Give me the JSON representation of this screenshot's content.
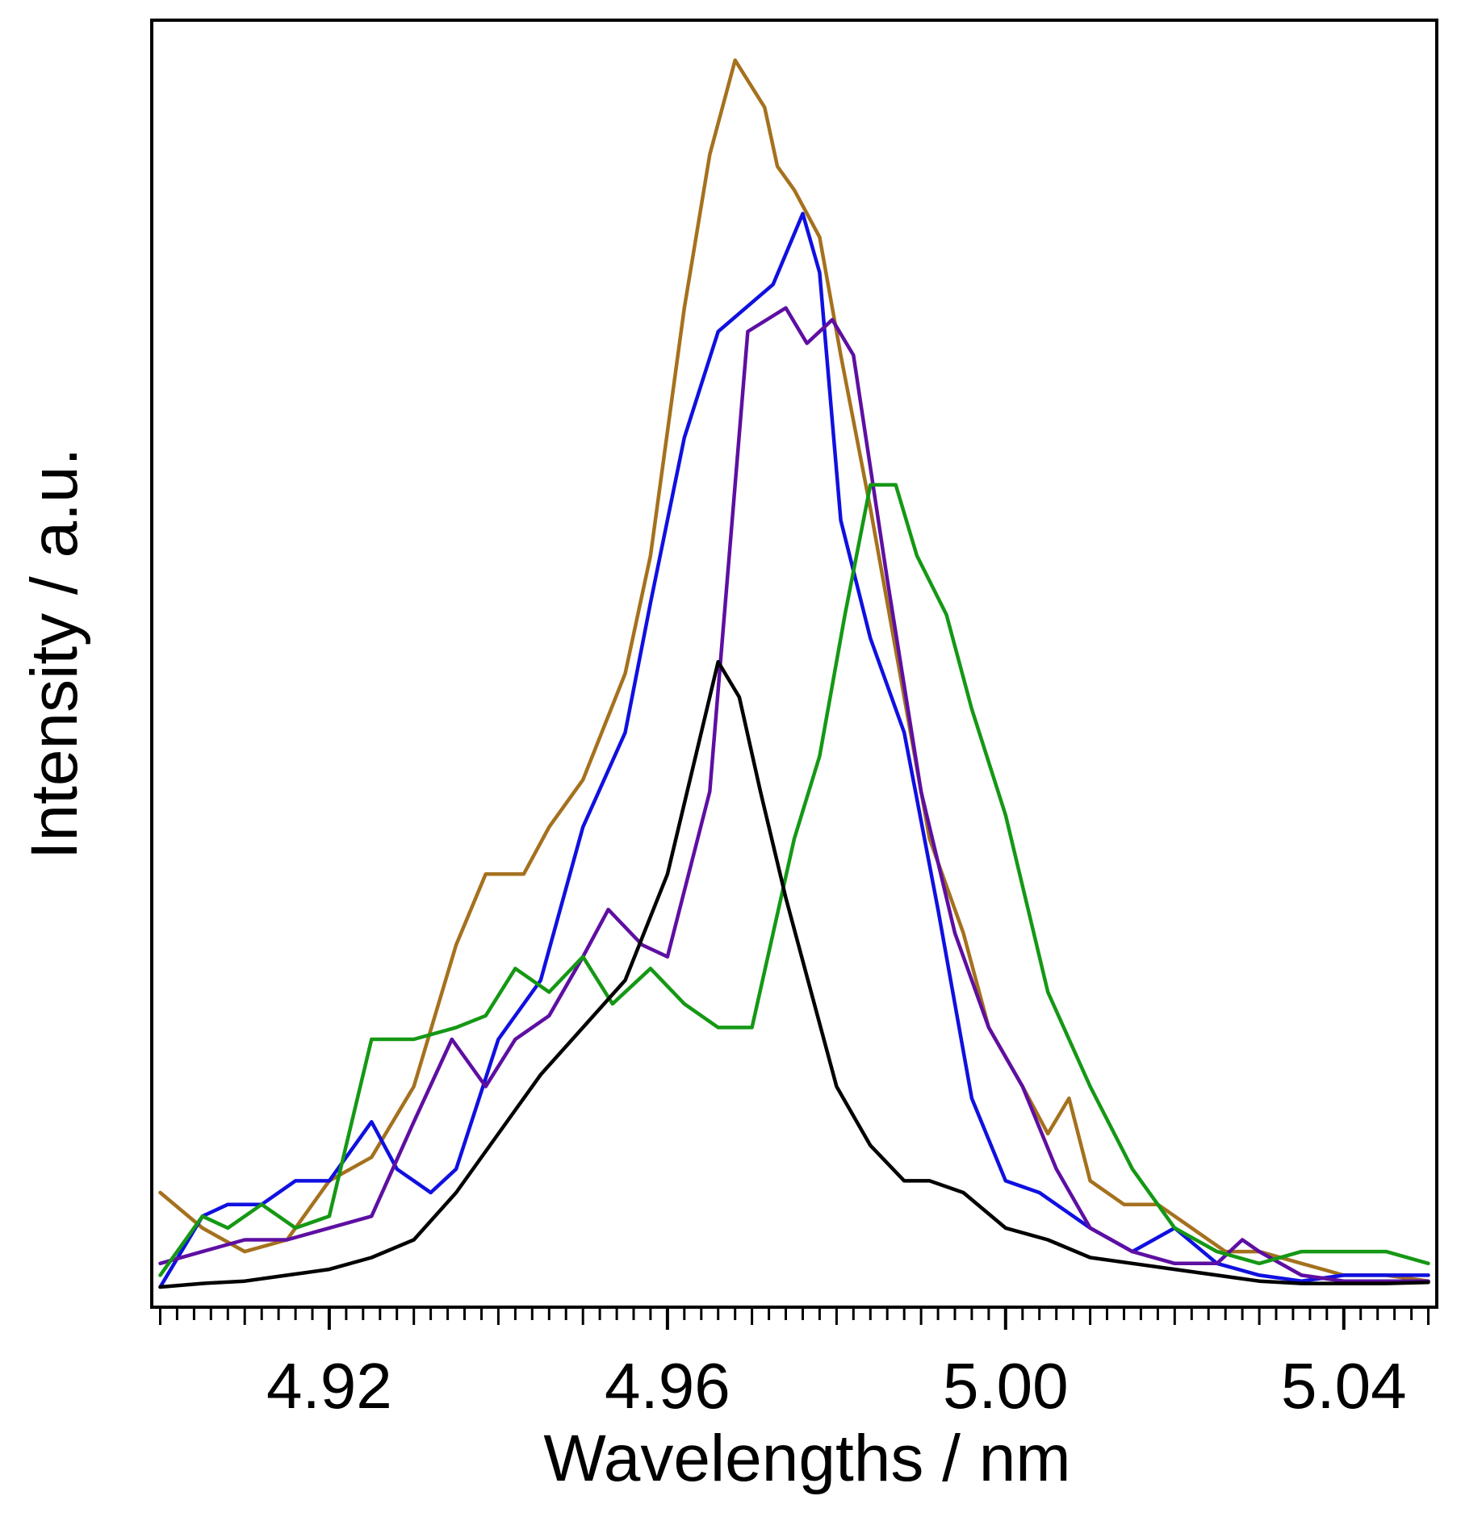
{
  "chart_data": {
    "type": "line",
    "title": "",
    "xlabel": "Wavelengths / nm",
    "ylabel": "Intensity / a.u.",
    "xlim": [
      4.899,
      5.051
    ],
    "ylim": [
      0.0,
      1.05
    ],
    "x_ticks": [
      4.92,
      4.96,
      5.0,
      5.04
    ],
    "x_tick_labels": [
      "4.92",
      "4.96",
      "5.00",
      "5.04"
    ],
    "x_minor_step": 0.002,
    "x_medium_step": 0.01,
    "y_ticks_shown": false,
    "grid": false,
    "legend": "none",
    "series": [
      {
        "name": "brown",
        "color": "#A5711E",
        "x": [
          4.9,
          4.905,
          4.91,
          4.915,
          4.92,
          4.925,
          4.93,
          4.935,
          4.9385,
          4.943,
          4.946,
          4.95,
          4.955,
          4.958,
          4.962,
          4.965,
          4.968,
          4.9715,
          4.973,
          4.975,
          4.978,
          4.9805,
          4.984,
          4.988,
          4.991,
          4.995,
          4.998,
          5.002,
          5.005,
          5.0075,
          5.01,
          5.014,
          5.018,
          5.022,
          5.026,
          5.03,
          5.035,
          5.04,
          5.045,
          5.05
        ],
        "y": [
          0.08,
          0.05,
          0.03,
          0.04,
          0.09,
          0.11,
          0.17,
          0.29,
          0.35,
          0.35,
          0.39,
          0.43,
          0.52,
          0.62,
          0.83,
          0.96,
          1.04,
          1.0,
          0.95,
          0.93,
          0.89,
          0.79,
          0.66,
          0.5,
          0.38,
          0.3,
          0.22,
          0.17,
          0.13,
          0.16,
          0.09,
          0.07,
          0.07,
          0.05,
          0.03,
          0.03,
          0.02,
          0.01,
          0.01,
          0.005
        ]
      },
      {
        "name": "blue",
        "color": "#1010E0",
        "x": [
          4.9,
          4.905,
          4.908,
          4.912,
          4.916,
          4.92,
          4.925,
          4.928,
          4.932,
          4.935,
          4.94,
          4.945,
          4.95,
          4.955,
          4.958,
          4.962,
          4.966,
          4.9725,
          4.976,
          4.978,
          4.9805,
          4.984,
          4.988,
          4.992,
          4.996,
          5.0,
          5.004,
          5.006,
          5.01,
          5.015,
          5.02,
          5.025,
          5.03,
          5.035,
          5.04,
          5.045,
          5.05
        ],
        "y": [
          0.0,
          0.06,
          0.07,
          0.07,
          0.09,
          0.09,
          0.14,
          0.1,
          0.08,
          0.1,
          0.21,
          0.26,
          0.39,
          0.47,
          0.58,
          0.72,
          0.81,
          0.85,
          0.91,
          0.86,
          0.65,
          0.55,
          0.47,
          0.32,
          0.16,
          0.09,
          0.08,
          0.07,
          0.05,
          0.03,
          0.05,
          0.02,
          0.01,
          0.005,
          0.01,
          0.01,
          0.01
        ]
      },
      {
        "name": "purple",
        "color": "#5E0FA2",
        "x": [
          4.9,
          4.905,
          4.91,
          4.915,
          4.92,
          4.925,
          4.93,
          4.9345,
          4.9385,
          4.942,
          4.946,
          4.95,
          4.953,
          4.957,
          4.96,
          4.965,
          4.9695,
          4.974,
          4.9765,
          4.9795,
          4.982,
          4.986,
          4.99,
          4.994,
          4.998,
          5.002,
          5.006,
          5.01,
          5.015,
          5.02,
          5.025,
          5.028,
          5.03,
          5.035,
          5.04,
          5.045,
          5.05
        ],
        "y": [
          0.02,
          0.03,
          0.04,
          0.04,
          0.05,
          0.06,
          0.14,
          0.21,
          0.17,
          0.21,
          0.23,
          0.28,
          0.32,
          0.29,
          0.28,
          0.42,
          0.81,
          0.83,
          0.8,
          0.82,
          0.79,
          0.6,
          0.42,
          0.3,
          0.22,
          0.17,
          0.1,
          0.05,
          0.03,
          0.02,
          0.02,
          0.04,
          0.03,
          0.01,
          0.005,
          0.005,
          0.005
        ]
      },
      {
        "name": "green",
        "color": "#159815",
        "x": [
          4.9,
          4.905,
          4.908,
          4.912,
          4.916,
          4.92,
          4.925,
          4.93,
          4.935,
          4.9385,
          4.942,
          4.946,
          4.95,
          4.9535,
          4.958,
          4.962,
          4.966,
          4.97,
          4.975,
          4.978,
          4.981,
          4.984,
          4.987,
          4.9895,
          4.993,
          4.996,
          5.0,
          5.005,
          5.01,
          5.015,
          5.02,
          5.025,
          5.03,
          5.035,
          5.04,
          5.045,
          5.05
        ],
        "y": [
          0.01,
          0.06,
          0.05,
          0.07,
          0.05,
          0.06,
          0.21,
          0.21,
          0.22,
          0.23,
          0.27,
          0.25,
          0.28,
          0.24,
          0.27,
          0.24,
          0.22,
          0.22,
          0.38,
          0.45,
          0.57,
          0.68,
          0.68,
          0.62,
          0.57,
          0.49,
          0.4,
          0.25,
          0.17,
          0.1,
          0.05,
          0.03,
          0.02,
          0.03,
          0.03,
          0.03,
          0.02
        ]
      },
      {
        "name": "black",
        "color": "#000000",
        "x": [
          4.9,
          4.905,
          4.91,
          4.915,
          4.92,
          4.925,
          4.93,
          4.935,
          4.94,
          4.945,
          4.95,
          4.955,
          4.96,
          4.963,
          4.966,
          4.9685,
          4.971,
          4.974,
          4.977,
          4.98,
          4.984,
          4.988,
          4.991,
          4.995,
          5.0,
          5.005,
          5.01,
          5.015,
          5.02,
          5.025,
          5.03,
          5.035,
          5.04,
          5.045,
          5.05
        ],
        "y": [
          0.0,
          0.003,
          0.005,
          0.01,
          0.015,
          0.025,
          0.04,
          0.08,
          0.13,
          0.18,
          0.22,
          0.26,
          0.35,
          0.44,
          0.53,
          0.5,
          0.42,
          0.33,
          0.25,
          0.17,
          0.12,
          0.09,
          0.09,
          0.08,
          0.05,
          0.04,
          0.025,
          0.02,
          0.015,
          0.01,
          0.005,
          0.003,
          0.003,
          0.003,
          0.004
        ]
      }
    ]
  }
}
